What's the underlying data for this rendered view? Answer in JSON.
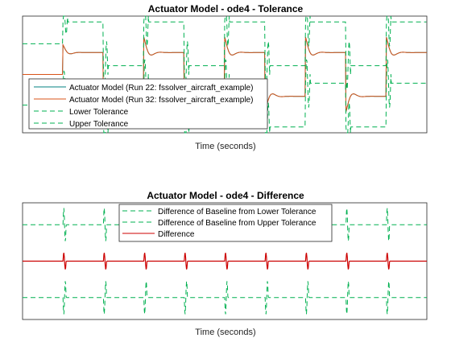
{
  "chart_data": [
    {
      "type": "line",
      "title": "Actuator Model - ode4 - Tolerance",
      "xlabel": "Time (seconds)",
      "ylabel": "",
      "x_ticks_visible": false,
      "y_ticks_visible": false,
      "x_range": [
        0,
        10
      ],
      "y_range": [
        -1.2,
        1.2
      ],
      "legend": "lower-left",
      "series": [
        {
          "name": "Actuator Model (Run 22: fssolver_aircraft_example)",
          "style": "solid",
          "color": "#008080",
          "kind": "response",
          "offset": 0,
          "values": [
            0,
            1,
            -1,
            1,
            -1,
            1,
            -1,
            1,
            -1,
            1
          ]
        },
        {
          "name": "Actuator Model (Run 32: fssolver_aircraft_example)",
          "style": "solid",
          "color": "#d95319",
          "kind": "response",
          "offset": 0,
          "values": [
            0,
            1,
            -1,
            1,
            -1,
            1,
            -1,
            1,
            -1,
            1
          ]
        },
        {
          "name": "Lower Tolerance",
          "style": "dashed",
          "color": "#00b050",
          "kind": "tolerance",
          "offset": -0.9,
          "values": [
            0,
            1,
            -1,
            1,
            -1,
            1,
            -1,
            1,
            -1,
            1
          ]
        },
        {
          "name": "Upper Tolerance",
          "style": "dashed",
          "color": "#00b050",
          "kind": "tolerance",
          "offset": 0.9,
          "values": [
            0,
            1,
            -1,
            1,
            -1,
            1,
            -1,
            1,
            -1,
            1
          ]
        }
      ]
    },
    {
      "type": "line",
      "title": "Actuator Model - ode4 - Difference",
      "xlabel": "Time (seconds)",
      "ylabel": "",
      "x_ticks_visible": false,
      "y_ticks_visible": false,
      "x_range": [
        0,
        10
      ],
      "y_range": [
        -1.2,
        1.2
      ],
      "legend": "top-right",
      "series": [
        {
          "name": "Difference of Baseline from Lower Tolerance",
          "style": "dashed",
          "color": "#00b050",
          "kind": "diff-band",
          "level": 0.75,
          "spike_dir": 1
        },
        {
          "name": "Difference of Baseline from Upper Tolerance",
          "style": "dashed",
          "color": "#00b050",
          "kind": "diff-band",
          "level": -0.75,
          "spike_dir": -1
        },
        {
          "name": "Difference",
          "style": "solid",
          "color": "#cc0000",
          "kind": "difference",
          "level": 0,
          "spike_dir": 1
        }
      ]
    }
  ]
}
